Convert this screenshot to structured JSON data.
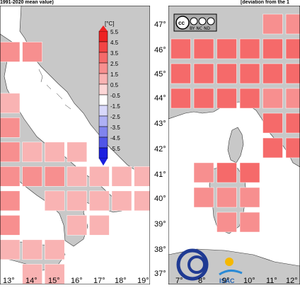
{
  "headers": {
    "left": "1991-2020 mean value)",
    "right": "[deviation from the 1"
  },
  "colorbar": {
    "title": "[°C]",
    "ticks": [
      "5.5",
      "4.5",
      "3.5",
      "2.5",
      "1.5",
      "0.5",
      "-0.5",
      "-1.5",
      "-2.5",
      "-3.5",
      "-4.5",
      "-5.5"
    ],
    "colors": [
      "#ee2222",
      "#f24444",
      "#f56a6a",
      "#f78f8f",
      "#f9b3b3",
      "#fcd7d7",
      "#ffffff",
      "#d8d8fa",
      "#aeb0f4",
      "#8084ee",
      "#5055e8",
      "#1b20e0"
    ]
  },
  "left_map": {
    "lon_labels": [
      "13°",
      "14°",
      "15°",
      "16°",
      "17°",
      "18°",
      "19°"
    ]
  },
  "right_map": {
    "lat_labels": [
      "47°",
      "46°",
      "45°",
      "44°",
      "43°",
      "42°",
      "41°",
      "40°",
      "39°",
      "38°",
      "37°"
    ],
    "lon_labels": [
      "7°",
      "8°",
      "9°",
      "10°",
      "11°",
      "12°"
    ]
  },
  "chart_data": {
    "type": "heatmap",
    "title": "",
    "units": "°C",
    "left_cells": [
      {
        "lon": 12.2,
        "lat": 45.8,
        "value": 2.5
      },
      {
        "lon": 13.2,
        "lat": 45.8,
        "value": 2.5
      },
      {
        "lon": 12.2,
        "lat": 43.7,
        "value": 1.5
      },
      {
        "lon": 12.2,
        "lat": 42.7,
        "value": 2.5
      },
      {
        "lon": 12.2,
        "lat": 41.7,
        "value": 2.5
      },
      {
        "lon": 13.2,
        "lat": 41.7,
        "value": 1.0
      },
      {
        "lon": 14.2,
        "lat": 41.7,
        "value": 1.0
      },
      {
        "lon": 15.2,
        "lat": 41.7,
        "value": 1.5
      },
      {
        "lon": 12.2,
        "lat": 40.7,
        "value": 2.5
      },
      {
        "lon": 13.2,
        "lat": 40.7,
        "value": 2.0
      },
      {
        "lon": 14.2,
        "lat": 40.7,
        "value": 2.0
      },
      {
        "lon": 15.2,
        "lat": 40.7,
        "value": 1.5
      },
      {
        "lon": 16.2,
        "lat": 40.7,
        "value": 1.5
      },
      {
        "lon": 17.2,
        "lat": 40.7,
        "value": 1.0
      },
      {
        "lon": 18.2,
        "lat": 40.7,
        "value": 1.0
      },
      {
        "lon": 12.2,
        "lat": 39.7,
        "value": 2.0
      },
      {
        "lon": 14.2,
        "lat": 39.7,
        "value": 1.0
      },
      {
        "lon": 15.2,
        "lat": 39.7,
        "value": 1.5
      },
      {
        "lon": 16.2,
        "lat": 39.7,
        "value": 1.5
      },
      {
        "lon": 17.2,
        "lat": 39.7,
        "value": 1.0
      },
      {
        "lon": 18.2,
        "lat": 39.7,
        "value": 1.0
      },
      {
        "lon": 12.2,
        "lat": 38.7,
        "value": 2.0
      },
      {
        "lon": 15.2,
        "lat": 38.7,
        "value": 1.5
      },
      {
        "lon": 16.2,
        "lat": 38.7,
        "value": 1.5
      },
      {
        "lon": 12.2,
        "lat": 37.7,
        "value": 1.5
      },
      {
        "lon": 13.2,
        "lat": 37.7,
        "value": 1.5
      },
      {
        "lon": 14.2,
        "lat": 37.7,
        "value": 1.5
      },
      {
        "lon": 13.2,
        "lat": 36.7,
        "value": 1.5
      },
      {
        "lon": 14.2,
        "lat": 36.7,
        "value": 1.5
      }
    ],
    "right_cells": [
      {
        "lon": 6.8,
        "lat": 46.0,
        "value": 3.0
      },
      {
        "lon": 7.8,
        "lat": 46.0,
        "value": 3.0
      },
      {
        "lon": 8.8,
        "lat": 46.0,
        "value": 3.0
      },
      {
        "lon": 9.8,
        "lat": 46.0,
        "value": 3.0
      },
      {
        "lon": 10.8,
        "lat": 46.0,
        "value": 3.0
      },
      {
        "lon": 11.8,
        "lat": 46.0,
        "value": 3.0
      },
      {
        "lon": 10.8,
        "lat": 47.0,
        "value": 2.5
      },
      {
        "lon": 11.8,
        "lat": 47.0,
        "value": 2.5
      },
      {
        "lon": 6.8,
        "lat": 45.0,
        "value": 3.5
      },
      {
        "lon": 7.8,
        "lat": 45.0,
        "value": 3.5
      },
      {
        "lon": 8.8,
        "lat": 45.0,
        "value": 3.5
      },
      {
        "lon": 9.8,
        "lat": 45.0,
        "value": 3.5
      },
      {
        "lon": 10.8,
        "lat": 45.0,
        "value": 3.0
      },
      {
        "lon": 11.8,
        "lat": 45.0,
        "value": 3.0
      },
      {
        "lon": 6.8,
        "lat": 44.0,
        "value": 3.5
      },
      {
        "lon": 7.8,
        "lat": 44.0,
        "value": 3.5
      },
      {
        "lon": 8.8,
        "lat": 44.0,
        "value": 3.0
      },
      {
        "lon": 9.8,
        "lat": 44.0,
        "value": 3.0
      },
      {
        "lon": 10.8,
        "lat": 44.0,
        "value": 2.5
      },
      {
        "lon": 11.8,
        "lat": 44.0,
        "value": 2.5
      },
      {
        "lon": 10.8,
        "lat": 43.0,
        "value": 3.0
      },
      {
        "lon": 11.8,
        "lat": 43.0,
        "value": 3.0
      },
      {
        "lon": 10.8,
        "lat": 42.0,
        "value": 3.0
      },
      {
        "lon": 11.8,
        "lat": 42.0,
        "value": 3.0
      },
      {
        "lon": 7.8,
        "lat": 41.0,
        "value": 2.5
      },
      {
        "lon": 8.8,
        "lat": 41.0,
        "value": 3.0
      },
      {
        "lon": 9.8,
        "lat": 41.0,
        "value": 3.5
      },
      {
        "lon": 7.8,
        "lat": 40.0,
        "value": 2.5
      },
      {
        "lon": 8.8,
        "lat": 40.0,
        "value": 2.5
      },
      {
        "lon": 9.8,
        "lat": 40.0,
        "value": 2.5
      },
      {
        "lon": 8.8,
        "lat": 39.0,
        "value": 2.5
      },
      {
        "lon": 9.8,
        "lat": 39.0,
        "value": 2.5
      }
    ]
  },
  "logo": {
    "cc_text": "BY NC ND",
    "isac_text": "ISAC"
  }
}
